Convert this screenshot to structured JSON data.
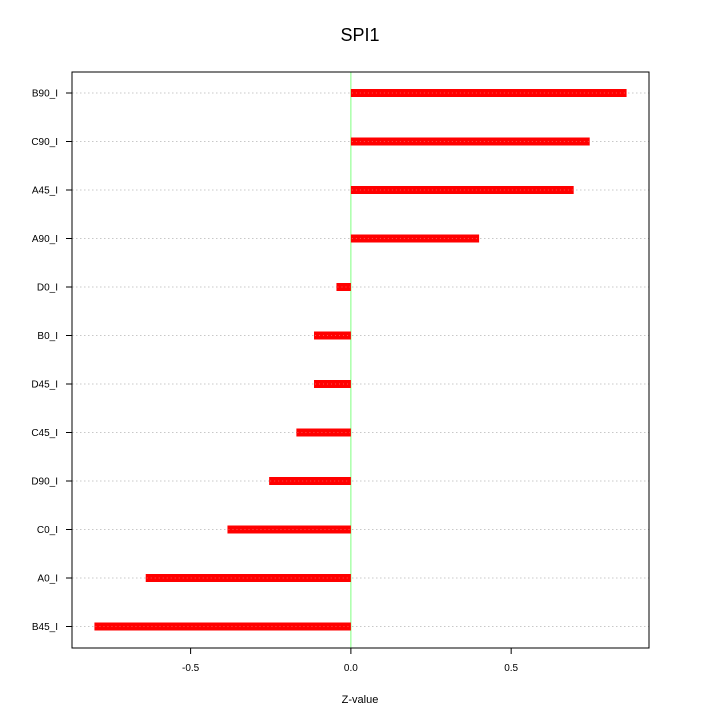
{
  "chart_data": {
    "type": "bar",
    "orientation": "horizontal",
    "title": "SPI1",
    "xlabel": "Z-value",
    "ylabel": "",
    "xlim": [
      -0.87,
      0.93
    ],
    "xticks": [
      -0.5,
      0.0,
      0.5
    ],
    "xtick_labels": [
      "-0.5",
      "0.0",
      "0.5"
    ],
    "grid": "horizontal dotted",
    "categories": [
      "B90_I",
      "C90_I",
      "A45_I",
      "A90_I",
      "D0_I",
      "B0_I",
      "D45_I",
      "C45_I",
      "D90_I",
      "C0_I",
      "A0_I",
      "B45_I"
    ],
    "values": [
      0.86,
      0.745,
      0.695,
      0.4,
      -0.045,
      -0.115,
      -0.115,
      -0.17,
      -0.255,
      -0.385,
      -0.64,
      -0.8
    ],
    "bar_color": "#ff0000",
    "zero_line_color": "#80ff80",
    "grid_color": "#c8c8c8"
  }
}
